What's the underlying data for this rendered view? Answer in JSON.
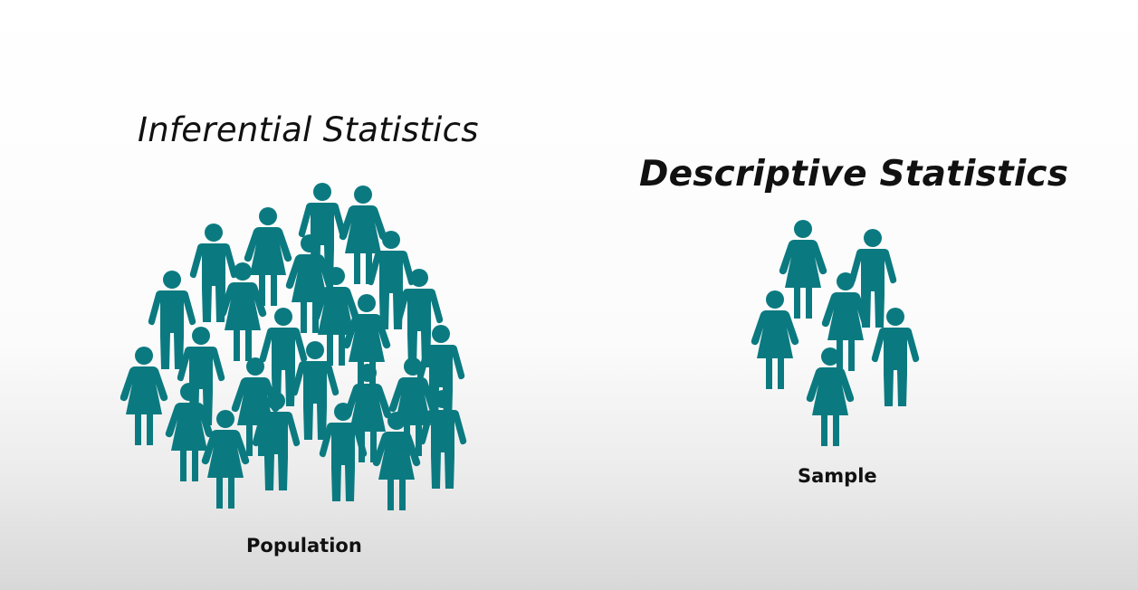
{
  "titles": {
    "inferential": "Inferential Statistics",
    "descriptive": "Descriptive Statistics"
  },
  "labels": {
    "population": "Population",
    "sample": "Sample"
  },
  "colors": {
    "figure": "#0b7a80",
    "text": "#111111"
  },
  "icons": {
    "male": "male-person-icon",
    "female": "female-person-icon"
  }
}
